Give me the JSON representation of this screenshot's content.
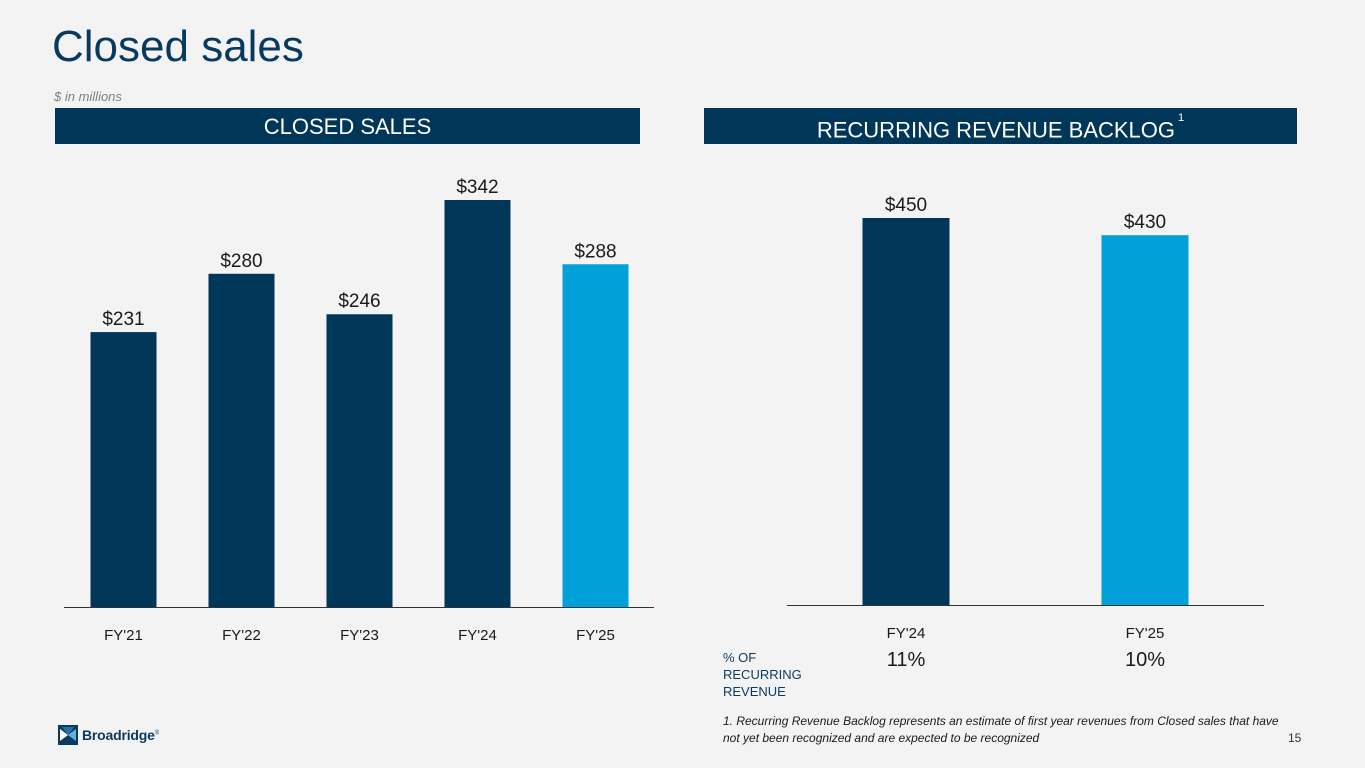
{
  "slide": {
    "title": "Closed sales",
    "subtitle": "$ in millions",
    "page_number": "15",
    "logo_text": "Broadridge",
    "logo_mark": "®"
  },
  "left_panel": {
    "banner": "CLOSED SALES"
  },
  "right_panel": {
    "banner": "RECURRING REVENUE BACKLOG",
    "banner_footnote_marker": "1",
    "pct_label_lines": [
      "% OF",
      "RECURRING",
      "REVENUE"
    ],
    "pct_values": [
      "11%",
      "10%"
    ],
    "footnote": "1. Recurring Revenue Backlog represents an estimate of first year revenues from Closed sales that have not yet been recognized and are expected to be recognized"
  },
  "colors": {
    "dark_navy": "#003658",
    "light_blue": "#00a0d8",
    "axis": "#333333",
    "text": "#1a1a1a"
  },
  "chart_data": [
    {
      "type": "bar",
      "title": "CLOSED SALES",
      "categories": [
        "FY'21",
        "FY'22",
        "FY'23",
        "FY'24",
        "FY'25"
      ],
      "values": [
        231,
        280,
        246,
        342,
        288
      ],
      "value_labels": [
        "$231",
        "$280",
        "$246",
        "$342",
        "$288"
      ],
      "highlight_index": 4,
      "ylim": [
        0,
        342
      ],
      "unit": "$ in millions"
    },
    {
      "type": "bar",
      "title": "RECURRING REVENUE BACKLOG",
      "categories": [
        "FY'24",
        "FY'25"
      ],
      "values": [
        450,
        430
      ],
      "value_labels": [
        "$450",
        "$430"
      ],
      "highlight_index": 1,
      "ylim": [
        0,
        450
      ],
      "unit": "$ in millions"
    }
  ]
}
